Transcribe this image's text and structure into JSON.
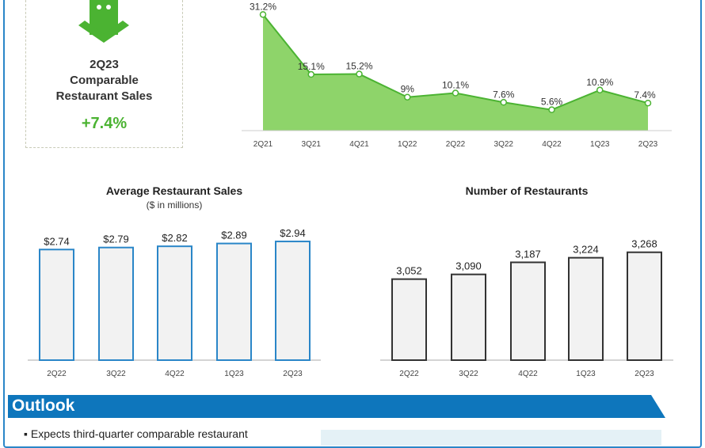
{
  "card": {
    "icon": "shopping-bag-icon",
    "title_line1": "2Q23",
    "title_line2": "Comparable",
    "title_line3": "Restaurant Sales",
    "value": "+7.4%"
  },
  "outlook": {
    "title": "Outlook",
    "bullet": "Expects third-quarter comparable restaurant"
  },
  "colors": {
    "green": "#4bb332",
    "green_fill": "#8ed46a",
    "blue": "#2a86c8",
    "banner": "#0e76bc"
  },
  "chart_data": [
    {
      "type": "area",
      "title": "",
      "categories": [
        "2Q21",
        "3Q21",
        "4Q21",
        "1Q22",
        "2Q22",
        "3Q22",
        "4Q22",
        "1Q23",
        "2Q23"
      ],
      "values": [
        31.2,
        15.1,
        15.2,
        9,
        10.1,
        7.6,
        5.6,
        10.9,
        7.4
      ],
      "labels": [
        "31.2%",
        "15.1%",
        "15.2%",
        "9%",
        "10.1%",
        "7.6%",
        "5.6%",
        "10.9%",
        "7.4%"
      ],
      "ylim": [
        0,
        32
      ]
    },
    {
      "type": "bar",
      "title": "Average Restaurant Sales",
      "subtitle": "($ in millions)",
      "categories": [
        "2Q22",
        "3Q22",
        "4Q22",
        "1Q23",
        "2Q23"
      ],
      "values": [
        2.74,
        2.79,
        2.82,
        2.89,
        2.94
      ],
      "labels": [
        "$2.74",
        "$2.79",
        "$2.82",
        "$2.89",
        "$2.94"
      ],
      "ylim": [
        0,
        3
      ]
    },
    {
      "type": "bar",
      "title": "Number of Restaurants",
      "categories": [
        "2Q22",
        "3Q22",
        "4Q22",
        "1Q23",
        "2Q23"
      ],
      "values": [
        3052,
        3090,
        3187,
        3224,
        3268
      ],
      "labels": [
        "3,052",
        "3,090",
        "3,187",
        "3,224",
        "3,268"
      ],
      "ylim": [
        2400,
        3300
      ]
    }
  ]
}
